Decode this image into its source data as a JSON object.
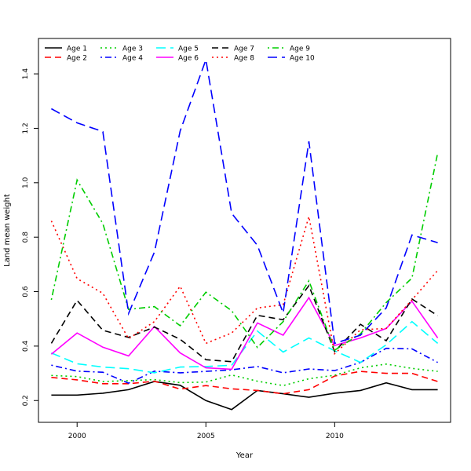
{
  "chart_data": {
    "type": "line",
    "title": "",
    "xlabel": "Year",
    "ylabel": "Land mean weight",
    "xlim": [
      1998.5,
      2014.5
    ],
    "ylim": [
      0.12,
      1.53
    ],
    "x_ticks": [
      2000,
      2005,
      2010
    ],
    "y_ticks": [
      0.2,
      0.4,
      0.6,
      0.8,
      1.0,
      1.2,
      1.4
    ],
    "grid": false,
    "legend_position": "top-left",
    "x": [
      1999,
      2000,
      2001,
      2002,
      2003,
      2004,
      2005,
      2006,
      2007,
      2008,
      2009,
      2010,
      2011,
      2012,
      2013,
      2014
    ],
    "series": [
      {
        "name": "Age 1",
        "color": "#000000",
        "dash": "solid",
        "values": [
          0.22,
          0.22,
          0.227,
          0.24,
          0.27,
          0.256,
          0.2,
          0.167,
          0.237,
          0.225,
          0.212,
          0.227,
          0.237,
          0.265,
          0.24,
          0.24
        ]
      },
      {
        "name": "Age 2",
        "color": "#ff0000",
        "dash": "dashed",
        "values": [
          0.285,
          0.276,
          0.262,
          0.262,
          0.271,
          0.242,
          0.255,
          0.243,
          0.237,
          0.225,
          0.24,
          0.29,
          0.307,
          0.3,
          0.3,
          0.27
        ]
      },
      {
        "name": "Age 3",
        "color": "#00cd00",
        "dash": "dotted",
        "values": [
          0.292,
          0.288,
          0.27,
          0.273,
          0.277,
          0.266,
          0.268,
          0.294,
          0.271,
          0.255,
          0.28,
          0.293,
          0.32,
          0.334,
          0.318,
          0.307
        ]
      },
      {
        "name": "Age 4",
        "color": "#0000ff",
        "dash": "dotdash",
        "values": [
          0.33,
          0.308,
          0.304,
          0.264,
          0.308,
          0.302,
          0.307,
          0.313,
          0.325,
          0.302,
          0.316,
          0.31,
          0.34,
          0.392,
          0.39,
          0.34
        ]
      },
      {
        "name": "Age 5",
        "color": "#00ffff",
        "dash": "longdash",
        "values": [
          0.375,
          0.335,
          0.323,
          0.317,
          0.302,
          0.323,
          0.325,
          0.33,
          0.455,
          0.378,
          0.43,
          0.383,
          0.34,
          0.405,
          0.49,
          0.41
        ]
      },
      {
        "name": "Age 6",
        "color": "#ff00ff",
        "dash": "solid",
        "values": [
          0.37,
          0.448,
          0.396,
          0.364,
          0.472,
          0.375,
          0.32,
          0.315,
          0.485,
          0.44,
          0.578,
          0.402,
          0.43,
          0.465,
          0.565,
          0.43
        ]
      },
      {
        "name": "Age 7",
        "color": "#000000",
        "dash": "dashed",
        "values": [
          0.41,
          0.568,
          0.458,
          0.432,
          0.47,
          0.425,
          0.35,
          0.343,
          0.513,
          0.497,
          0.622,
          0.38,
          0.48,
          0.42,
          0.573,
          0.512
        ]
      },
      {
        "name": "Age 8",
        "color": "#ff0000",
        "dash": "dotted",
        "values": [
          0.86,
          0.648,
          0.594,
          0.427,
          0.49,
          0.62,
          0.41,
          0.448,
          0.54,
          0.552,
          0.876,
          0.372,
          0.46,
          0.465,
          0.57,
          0.678
        ]
      },
      {
        "name": "Age 9",
        "color": "#00cd00",
        "dash": "dotdash",
        "values": [
          0.57,
          1.01,
          0.85,
          0.535,
          0.545,
          0.475,
          0.598,
          0.53,
          0.395,
          0.49,
          0.64,
          0.385,
          0.445,
          0.56,
          0.65,
          1.11
        ]
      },
      {
        "name": "Age 10",
        "color": "#0000ff",
        "dash": "longdash",
        "values": [
          1.272,
          1.22,
          1.188,
          0.52,
          0.745,
          1.19,
          1.452,
          0.888,
          0.77,
          0.522,
          1.152,
          0.41,
          0.44,
          0.54,
          0.808,
          0.78
        ]
      }
    ]
  }
}
